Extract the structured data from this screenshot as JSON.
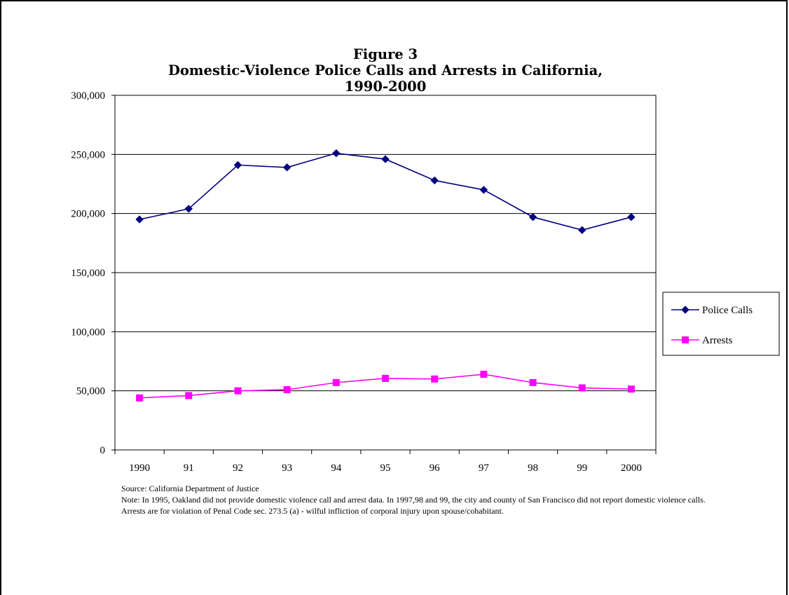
{
  "chart_data": {
    "type": "line",
    "title_lines": [
      "Figure 3",
      "Domestic-Violence Police Calls and Arrests in California,",
      "1990-2000"
    ],
    "categories": [
      "1990",
      "91",
      "92",
      "93",
      "94",
      "95",
      "96",
      "97",
      "98",
      "99",
      "2000"
    ],
    "ylim": [
      0,
      300000
    ],
    "yticks": [
      0,
      50000,
      100000,
      150000,
      200000,
      250000,
      300000
    ],
    "ytick_labels": [
      "0",
      "50,000",
      "100,000",
      "150,000",
      "200,000",
      "250,000",
      "300,000"
    ],
    "grid": true,
    "legend_position": "right",
    "series": [
      {
        "name": "Police Calls",
        "color": "#000080",
        "marker": "diamond",
        "values": [
          195000,
          204000,
          241000,
          239000,
          251000,
          246000,
          228000,
          220000,
          197000,
          186000,
          197000
        ]
      },
      {
        "name": "Arrests",
        "color": "#ff00ff",
        "marker": "square",
        "values": [
          44000,
          46000,
          50000,
          51000,
          57000,
          60500,
          60000,
          64000,
          57000,
          52500,
          51500
        ]
      }
    ]
  },
  "notes": {
    "source": "Source:  California Department of Justice",
    "note": "Note:  In 1995, Oakland did not provide domestic violence call and arrest data.   In 1997,98 and 99, the city and county of San Francisco did not report domestic violence calls.",
    "arrests": "Arrests are for violation of Penal Code sec. 273.5 (a) - wilful infliction of corporal injury upon spouse/cohabitant."
  }
}
